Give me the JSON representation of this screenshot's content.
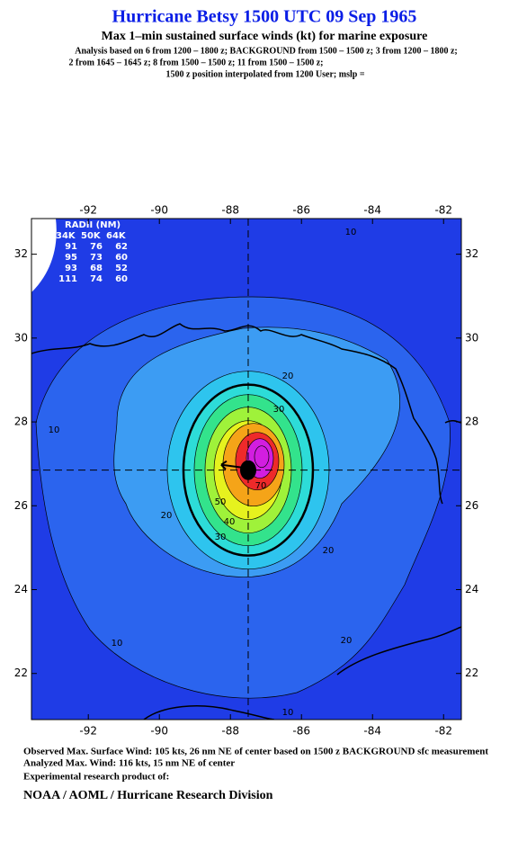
{
  "header": {
    "title": "Hurricane Betsy 1500 UTC 09 Sep 1965",
    "subtitle": "Max 1–min sustained surface winds (kt) for marine exposure",
    "analysis_lines": [
      "Analysis based on  6 from 1200 – 1800 z;  BACKGROUND from 1500 – 1500 z;  3 from 1200 – 1800 z;",
      "2 from 1645 – 1645 z;  8 from 1500 – 1500 z;  11 from 1500 – 1500 z;"
    ],
    "position_note": "1500 z position interpolated from 1200 User; mslp ="
  },
  "chart_data": {
    "type": "contour-map",
    "xlim": [
      -93.6,
      -81.5
    ],
    "ylim": [
      20.9,
      32.85
    ],
    "xticks": [
      -92,
      -90,
      -88,
      -86,
      -84,
      -82
    ],
    "yticks": [
      22,
      24,
      26,
      28,
      30,
      32
    ],
    "center": {
      "lon": -87.5,
      "lat": 26.85
    },
    "contour_levels": [
      10,
      20,
      30,
      40,
      50,
      60,
      70,
      80,
      90,
      100,
      110
    ],
    "colors": [
      "#1f3ce6",
      "#2b64ee",
      "#3c9cf3",
      "#2ec4ee",
      "#2ddcd8",
      "#33e38c",
      "#9ff23a",
      "#e6f21e",
      "#f5a418",
      "#ee2a2a",
      "#d21ee0"
    ],
    "contour_labels": [
      10,
      10,
      10,
      10,
      20,
      20,
      20,
      20,
      30,
      30,
      40,
      50,
      70
    ],
    "radii_table": {
      "title": "RADII (NM)",
      "columns": [
        "34K",
        "50K",
        "64K"
      ],
      "rows": [
        [
          91,
          76,
          62
        ],
        [
          95,
          73,
          60
        ],
        [
          93,
          68,
          52
        ],
        [
          111,
          74,
          60
        ]
      ]
    }
  },
  "footer": {
    "observed": "Observed Max. Surface Wind: 105 kts, 26 nm NE of center based on 1500 z BACKGROUND sfc measurement",
    "analyzed": "Analyzed Max. Wind: 116 kts, 15 nm NE of center",
    "product": "Experimental research product of:",
    "org": "NOAA / AOML / Hurricane Research Division"
  }
}
